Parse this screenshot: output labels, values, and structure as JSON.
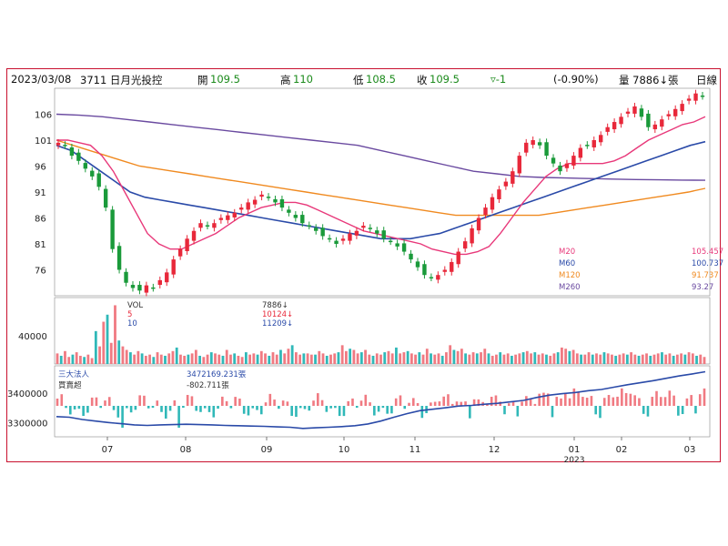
{
  "header": {
    "date": "2023/03/08",
    "stock": "3711 日月光投控",
    "open_label": "開",
    "open_value": "109.5",
    "high_label": "高",
    "high_value": "110",
    "low_label": "低",
    "low_value": "108.5",
    "close_label": "收",
    "close_value": "109.5",
    "change": "▿-1",
    "change_pct": "(-0.90%)",
    "volume": "量 7886↓張",
    "period": "日線"
  },
  "colors": {
    "up": "#e8283a",
    "down": "#1a9a3a",
    "ma20": "#e8387a",
    "ma60": "#2a4aa8",
    "ma120": "#f08a20",
    "ma260": "#6a4aa0",
    "vol_up": "#f07a82",
    "vol_down": "#30b8b8",
    "inst_line": "#2a4aa8",
    "frame": "#c8102e"
  },
  "chart_data": {
    "type": "candlestick",
    "x_ticks": [
      "07",
      "08",
      "09",
      "10",
      "11",
      "12",
      "01",
      "02",
      "03"
    ],
    "x_year_label": "2023",
    "price_panel": {
      "y_ticks": [
        106,
        101,
        96,
        91,
        86,
        81,
        76
      ],
      "ylim": [
        71,
        111
      ],
      "close_path": [
        100.5,
        100,
        98,
        97,
        95.5,
        94,
        92,
        88,
        80,
        76,
        73.5,
        72.5,
        72,
        73,
        72.5,
        74,
        75.5,
        78,
        80,
        82,
        83.5,
        85,
        84.5,
        85,
        86,
        86.5,
        87,
        88,
        89,
        89.5,
        90.5,
        90,
        89,
        88,
        87,
        86,
        85,
        84.5,
        83.5,
        82.5,
        82,
        81,
        82,
        83,
        83.5,
        84.5,
        84,
        83,
        82,
        81.5,
        80.5,
        79.5,
        78,
        76.5,
        75,
        74.5,
        75,
        76,
        77.5,
        79.5,
        81.5,
        84,
        86,
        88,
        90,
        91.5,
        93,
        95,
        98,
        100.5,
        101,
        100,
        98,
        96.5,
        95,
        96.5,
        98,
        99.5,
        100,
        101,
        102,
        103.5,
        104.5,
        105.5,
        106.5,
        107.5,
        105.5,
        103.5,
        104,
        105,
        106,
        107,
        108,
        109,
        110,
        109.5
      ],
      "ma20_path": [
        101,
        101,
        100.5,
        100,
        98,
        95,
        91,
        87,
        83,
        81,
        80,
        80,
        81,
        82,
        83,
        84.5,
        86,
        87,
        88,
        88.5,
        89,
        89,
        88.5,
        87.5,
        86.5,
        85.5,
        84.5,
        83.5,
        83,
        82.5,
        82,
        81.5,
        81,
        80,
        79.5,
        79,
        79,
        79.5,
        80.5,
        83,
        86,
        89,
        91.5,
        94,
        95.5,
        96.5,
        96.5,
        96.5,
        96.5,
        97,
        98,
        99.5,
        101,
        102,
        103,
        104,
        104.5,
        105.5
      ],
      "ma60_path": [
        100,
        99,
        97,
        95,
        93,
        91,
        90,
        89.5,
        89,
        88.5,
        88,
        87.5,
        87,
        86.5,
        86,
        85.5,
        85,
        84.5,
        84,
        83.5,
        83,
        82.5,
        82,
        82,
        82,
        82.5,
        83,
        84,
        85,
        86,
        87,
        88,
        89,
        90,
        91,
        92,
        93,
        94,
        95,
        96,
        97,
        98,
        99,
        100,
        100.7
      ],
      "ma120_path": [
        101,
        100,
        99,
        98,
        97,
        96,
        95.5,
        95,
        94.5,
        94,
        93.5,
        93,
        92.5,
        92,
        91.5,
        91,
        90.5,
        90,
        89.5,
        89,
        88.5,
        88,
        87.5,
        87,
        86.5,
        86.5,
        86.5,
        86.5,
        86.5,
        86.5,
        87,
        87.5,
        88,
        88.5,
        89,
        89.5,
        90,
        90.5,
        91,
        91.7
      ],
      "ma260_path": [
        106,
        105.8,
        105.5,
        105,
        104.5,
        104,
        103.5,
        103,
        102.5,
        102,
        101.5,
        101,
        100.5,
        100,
        99,
        98,
        97,
        96,
        95,
        94.5,
        94,
        93.8,
        93.7,
        93.6,
        93.5,
        93.4,
        93.35,
        93.3,
        93.27
      ]
    },
    "legend": [
      {
        "name": "M20",
        "value": "105.457"
      },
      {
        "name": "M60",
        "value": "100.737"
      },
      {
        "name": "M120",
        "value": "91.737"
      },
      {
        "name": "M260",
        "value": "93.27"
      }
    ],
    "volume_panel": {
      "y_ticks": [
        40000
      ],
      "legend": [
        {
          "name": "VOL",
          "value": "7886↓"
        },
        {
          "name": "5",
          "value": "10124↓"
        },
        {
          "name": "10",
          "value": "11209↓"
        }
      ],
      "values": [
        9,
        7,
        11,
        6,
        8,
        10,
        7,
        6,
        8,
        5,
        28,
        15,
        36,
        42,
        18,
        50,
        20,
        15,
        12,
        10,
        8,
        11,
        9,
        7,
        8,
        6,
        10,
        8,
        7,
        9,
        11,
        14,
        8,
        7,
        8,
        9,
        12,
        7,
        6,
        8,
        10,
        9,
        8,
        7,
        12,
        8,
        9,
        7,
        6,
        10,
        8,
        9,
        8,
        11,
        9,
        7,
        10,
        8,
        12,
        9,
        13,
        16,
        10,
        8,
        9,
        9,
        8,
        8,
        11,
        9,
        7,
        8,
        9,
        10,
        16,
        11,
        13,
        12,
        9,
        10,
        12,
        8,
        7,
        9,
        8,
        10,
        11,
        9,
        14,
        9,
        10,
        11,
        9,
        8,
        10,
        8,
        13,
        9,
        8,
        9,
        7,
        10,
        16,
        12,
        11,
        13,
        9,
        8,
        10,
        9,
        10,
        13,
        9,
        7,
        8,
        10,
        8,
        9,
        7,
        8,
        9,
        10,
        11,
        9,
        10,
        8,
        9,
        8,
        7,
        9,
        10,
        14,
        13,
        11,
        12,
        9,
        8,
        8,
        10,
        8,
        9,
        8,
        10,
        9,
        8,
        7,
        8,
        9,
        8,
        10,
        8,
        7,
        8,
        9,
        7,
        8,
        9,
        10,
        8,
        9,
        7,
        8,
        9,
        8,
        10,
        9,
        7,
        8,
        6
      ]
    },
    "inst_panel": {
      "y_ticks": [
        3400000,
        3300000
      ],
      "legend_title": "三大法人",
      "legend_sub": "買賣超",
      "holding_value": "3472169.231張",
      "net_value": "-802.711張",
      "line_path": [
        3320000,
        3318000,
        3310000,
        3305000,
        3300000,
        3296000,
        3292000,
        3290000,
        3292000,
        3293000,
        3294000,
        3293000,
        3292000,
        3290000,
        3289000,
        3288000,
        3287000,
        3285000,
        3284000,
        3280000,
        3282000,
        3284000,
        3286000,
        3289000,
        3295000,
        3305000,
        3318000,
        3330000,
        3340000,
        3345000,
        3350000,
        3356000,
        3358000,
        3362000,
        3365000,
        3370000,
        3375000,
        3385000,
        3393000,
        3398000,
        3402000,
        3408000,
        3412000,
        3420000,
        3428000,
        3435000,
        3442000,
        3450000,
        3458000,
        3465000,
        3472169
      ]
    }
  }
}
